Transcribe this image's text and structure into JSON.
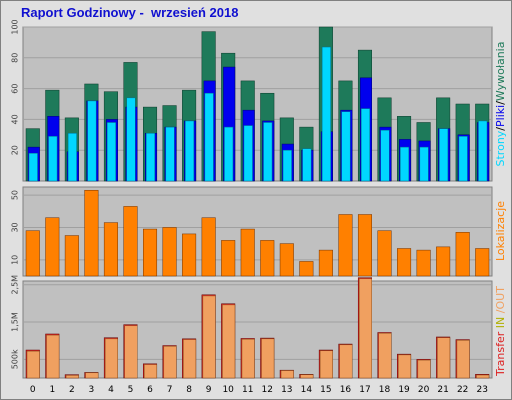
{
  "title": "Raport Godzinowy -  wrzesień 2018",
  "chart_data": [
    {
      "type": "bar",
      "title": "",
      "ylabel_parts": [
        "Strony",
        "/",
        "Pliki",
        "/",
        "Wywołania"
      ],
      "yticks": [
        20,
        40,
        60,
        80,
        100
      ],
      "ylim": [
        0,
        100
      ],
      "categories": [
        "0",
        "1",
        "2",
        "3",
        "4",
        "5",
        "6",
        "7",
        "8",
        "9",
        "10",
        "11",
        "12",
        "13",
        "14",
        "15",
        "16",
        "17",
        "18",
        "19",
        "20",
        "21",
        "22",
        "23"
      ],
      "series": [
        {
          "name": "Wywołania",
          "color": "#1e7a5a",
          "values": [
            34,
            59,
            41,
            63,
            58,
            77,
            48,
            49,
            59,
            97,
            83,
            65,
            57,
            41,
            35,
            100,
            65,
            85,
            54,
            42,
            38,
            54,
            50,
            50
          ]
        },
        {
          "name": "Pliki",
          "color": "#0000ee",
          "values": [
            22,
            42,
            19,
            52,
            40,
            48,
            31,
            35,
            39,
            65,
            74,
            46,
            39,
            24,
            20,
            32,
            46,
            67,
            35,
            27,
            26,
            34,
            30,
            38
          ]
        },
        {
          "name": "Strony",
          "color": "#00d7ff",
          "values": [
            18,
            29,
            31,
            52,
            38,
            54,
            31,
            35,
            39,
            57,
            35,
            36,
            38,
            20,
            21,
            87,
            45,
            47,
            33,
            22,
            22,
            34,
            29,
            39
          ]
        }
      ]
    },
    {
      "type": "bar",
      "title": "",
      "ylabel": "Lokalizacje",
      "yticks": [
        10,
        30,
        50
      ],
      "ylim": [
        0,
        55
      ],
      "categories": [
        "0",
        "1",
        "2",
        "3",
        "4",
        "5",
        "6",
        "7",
        "8",
        "9",
        "10",
        "11",
        "12",
        "13",
        "14",
        "15",
        "16",
        "17",
        "18",
        "19",
        "20",
        "21",
        "22",
        "23"
      ],
      "series": [
        {
          "name": "Lokalizacje",
          "color": "#ff8000",
          "values": [
            28,
            36,
            25,
            53,
            33,
            43,
            29,
            30,
            26,
            36,
            22,
            29,
            22,
            20,
            9,
            16,
            38,
            38,
            28,
            17,
            16,
            18,
            27,
            17
          ]
        }
      ]
    },
    {
      "type": "bar",
      "title": "",
      "ylabel_parts": [
        "Transfer",
        " IN",
        " /OUT"
      ],
      "yticks": [
        500,
        1500,
        2500
      ],
      "ytick_labels": [
        "500k",
        "1,5M",
        "2,5M"
      ],
      "ylim": [
        0,
        2600
      ],
      "categories": [
        "0",
        "1",
        "2",
        "3",
        "4",
        "5",
        "6",
        "7",
        "8",
        "9",
        "10",
        "11",
        "12",
        "13",
        "14",
        "15",
        "16",
        "17",
        "18",
        "19",
        "20",
        "21",
        "22",
        "23"
      ],
      "series": [
        {
          "name": "Transfer",
          "color": "#dd2222",
          "values": [
            750,
            1180,
            90,
            150,
            1080,
            1430,
            380,
            870,
            1050,
            2230,
            1990,
            1060,
            1070,
            210,
            100,
            750,
            910,
            2690,
            1220,
            640,
            500,
            1100,
            1030,
            100
          ]
        },
        {
          "name": "OUT",
          "color": "#f0a060",
          "values": [
            720,
            1150,
            70,
            140,
            1050,
            1400,
            360,
            850,
            1030,
            2200,
            1960,
            1040,
            1050,
            200,
            90,
            730,
            890,
            2660,
            1200,
            620,
            480,
            1080,
            1010,
            80
          ]
        }
      ]
    }
  ],
  "colors": {
    "panel_bg": "#c0c0c0",
    "frame_bg": "#e0e0e0",
    "grid": "#a0a0a0",
    "title": "#1010d0",
    "label_in": "#b0b000"
  }
}
